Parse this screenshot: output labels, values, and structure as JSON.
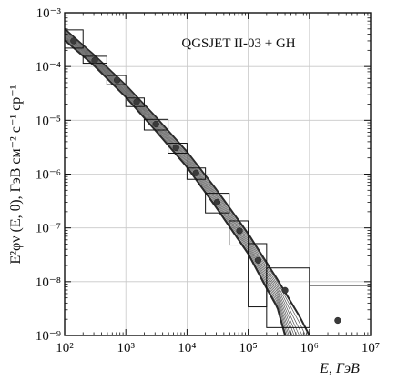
{
  "chart_data": {
    "type": "scatter",
    "title": "",
    "annotation": "QGSJET II-03 + GH",
    "xlabel": "E, ГэВ",
    "ylabel": "E²φν (E, θ), ГэВ см⁻² с⁻¹ ср⁻¹",
    "xscale": "log",
    "yscale": "log",
    "xlim": [
      100,
      10000000
    ],
    "ylim": [
      1e-09,
      0.001
    ],
    "grid": true,
    "x_tick_labels": [
      "10²",
      "10³",
      "10⁴",
      "10⁵",
      "10⁶",
      "10⁷"
    ],
    "y_tick_labels": [
      "10⁻⁹",
      "10⁻⁸",
      "10⁻⁷",
      "10⁻⁶",
      "10⁻⁵",
      "10⁻⁴",
      "10⁻³"
    ],
    "data_points": [
      {
        "x": 140,
        "y": 0.0003
      },
      {
        "x": 310,
        "y": 0.00013
      },
      {
        "x": 720,
        "y": 5.6e-05
      },
      {
        "x": 1500,
        "y": 2.2e-05
      },
      {
        "x": 3100,
        "y": 8.5e-06
      },
      {
        "x": 6600,
        "y": 3.1e-06
      },
      {
        "x": 14000,
        "y": 1.05e-06
      },
      {
        "x": 31000,
        "y": 3e-07
      },
      {
        "x": 72000,
        "y": 8.8e-08
      },
      {
        "x": 145000,
        "y": 2.5e-08
      },
      {
        "x": 400000,
        "y": 6.9e-09
      },
      {
        "x": 2900000,
        "y": 1.9e-09
      }
    ],
    "error_boxes": [
      {
        "x": [
          100,
          200
        ],
        "y": [
          0.00022,
          0.00048
        ]
      },
      {
        "x": [
          200,
          490
        ],
        "y": [
          0.000115,
          0.000155
        ]
      },
      {
        "x": [
          490,
          1000
        ],
        "y": [
          4.6e-05,
          6.8e-05
        ]
      },
      {
        "x": [
          1000,
          2000
        ],
        "y": [
          1.8e-05,
          2.6e-05
        ]
      },
      {
        "x": [
          2000,
          4900
        ],
        "y": [
          6.6e-06,
          1.04e-05
        ]
      },
      {
        "x": [
          4900,
          10000
        ],
        "y": [
          2.45e-06,
          3.75e-06
        ]
      },
      {
        "x": [
          10000,
          20000
        ],
        "y": [
          8e-07,
          1.3e-06
        ]
      },
      {
        "x": [
          20000,
          49000
        ],
        "y": [
          1.9e-07,
          4.4e-07
        ]
      },
      {
        "x": [
          49000,
          100000
        ],
        "y": [
          4.8e-08,
          1.35e-07
        ]
      },
      {
        "x": [
          100000,
          200000
        ],
        "y": [
          3.4e-09,
          5.1e-08
        ]
      },
      {
        "x": [
          200000,
          1000000
        ],
        "y": [
          1.4e-09,
          1.8e-08
        ]
      }
    ],
    "open_bin": {
      "x": [
        1000000,
        10000000
      ],
      "y": 8.5e-09
    },
    "model_band": {
      "upper": [
        [
          100,
          0.0005
        ],
        [
          300,
          0.000165
        ],
        [
          1000,
          4.5e-05
        ],
        [
          3000,
          1.2e-05
        ],
        [
          10000,
          2.6e-06
        ],
        [
          30000,
          5.2e-07
        ],
        [
          100000,
          7.8e-08
        ],
        [
          300000,
          1.1e-08
        ],
        [
          700000,
          2.2e-09
        ],
        [
          1000000,
          1e-09
        ]
      ],
      "lower": [
        [
          100,
          0.00031
        ],
        [
          300,
          0.000105
        ],
        [
          1000,
          2.7e-05
        ],
        [
          3000,
          6.6e-06
        ],
        [
          10000,
          1.35e-06
        ],
        [
          30000,
          2.4e-07
        ],
        [
          100000,
          3.3e-08
        ],
        [
          200000,
          7.5e-09
        ],
        [
          300000,
          3.3e-09
        ],
        [
          400000,
          1e-09
        ]
      ],
      "curve_count": 12
    }
  }
}
